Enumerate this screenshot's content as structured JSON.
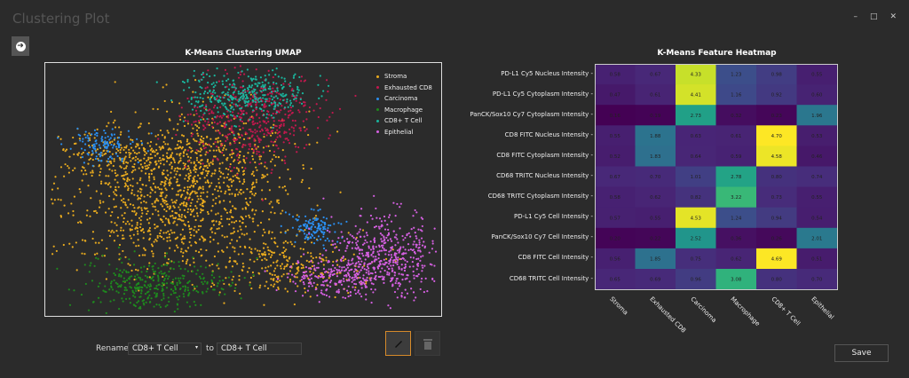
{
  "window": {
    "title": "Clustering Plot",
    "minimize": "–",
    "maximize": "□",
    "close": "✕"
  },
  "umap": {
    "title": "K-Means Clustering UMAP"
  },
  "heatmap": {
    "title": "K-Means Feature Heatmap"
  },
  "controls": {
    "rename_label": "Rename",
    "from_value": "CD8+ T Cell",
    "to_label": "to",
    "to_value": "CD8+ T Cell",
    "save_label": "Save"
  },
  "colors": {
    "Stroma": "#e8aa1e",
    "Exhausted CD8": "#c2184e",
    "Carcinoma": "#2b8ff0",
    "Macrophage": "#1e8a1e",
    "CD8+ T Cell": "#1ab59d",
    "Epithelial": "#d660e2"
  },
  "chart_data": [
    {
      "type": "scatter",
      "title": "K-Means Clustering UMAP",
      "legend": [
        "Stroma",
        "Exhausted CD8",
        "Carcinoma",
        "Macrophage",
        "CD8+ T Cell",
        "Epithelial"
      ],
      "legend_position": "top-right",
      "clusters": [
        {
          "name": "Stroma",
          "components": [
            [
              33,
              55,
              15,
              14,
              1000
            ],
            [
              42,
              35,
              9,
              9,
              300
            ],
            [
              60,
              80,
              10,
              6,
              250
            ],
            [
              20,
              38,
              8,
              6,
              200
            ]
          ]
        },
        {
          "name": "Exhausted CD8",
          "components": [
            [
              52,
              22,
              8,
              9,
              500
            ]
          ]
        },
        {
          "name": "CD8+ T Cell",
          "components": [
            [
              51,
              12,
              8,
              5,
              350
            ]
          ]
        },
        {
          "name": "Carcinoma",
          "components": [
            [
              14,
              33,
              4,
              3,
              120
            ],
            [
              68,
              65,
              3,
              3,
              120
            ]
          ]
        },
        {
          "name": "Macrophage",
          "components": [
            [
              28,
              88,
              9,
              5,
              350
            ]
          ]
        },
        {
          "name": "Epithelial",
          "components": [
            [
              86,
              75,
              7,
              8,
              450
            ],
            [
              76,
              85,
              8,
              4,
              250
            ]
          ]
        }
      ]
    },
    {
      "type": "heatmap",
      "title": "K-Means Feature Heatmap",
      "rows": [
        "PD-L1 Cy5 Nucleus Intensity",
        "PD-L1 Cy5 Cytoplasm Intensity",
        "PanCK/Sox10 Cy7 Cytoplasm Intensity",
        "CD8 FITC Nucleus Intensity",
        "CD8 FITC Cytoplasm Intensity",
        "CD68 TRITC Nucleus Intensity",
        "CD68 TRITC Cytoplasm Intensity",
        "PD-L1 Cy5 Cell Intensity",
        "PanCK/Sox10 Cy7 Cell Intensity",
        "CD8 FITC Cell Intensity",
        "CD68 TRITC Cell Intensity"
      ],
      "columns": [
        "Stroma",
        "Exhausted CD8",
        "Carcinoma",
        "Macrophage",
        "CD8+ T Cell",
        "Epithelial"
      ],
      "values": [
        [
          0.58,
          0.67,
          4.33,
          1.23,
          0.98,
          0.55
        ],
        [
          0.47,
          0.61,
          4.41,
          1.16,
          0.92,
          0.6
        ],
        [
          0.16,
          0.19,
          2.73,
          0.32,
          0.23,
          1.96
        ],
        [
          0.55,
          1.88,
          0.63,
          0.61,
          4.7,
          0.53
        ],
        [
          0.52,
          1.83,
          0.64,
          0.59,
          4.58,
          0.46
        ],
        [
          0.67,
          0.7,
          1.01,
          2.78,
          0.8,
          0.74
        ],
        [
          0.58,
          0.62,
          0.82,
          3.22,
          0.73,
          0.55
        ],
        [
          0.57,
          0.55,
          4.53,
          1.24,
          0.94,
          0.54
        ],
        [
          0.2,
          0.22,
          2.52,
          0.36,
          0.26,
          2.01
        ],
        [
          0.56,
          1.85,
          0.75,
          0.62,
          4.69,
          0.51
        ],
        [
          0.65,
          0.69,
          0.96,
          3.08,
          0.8,
          0.7
        ]
      ],
      "colormap": "viridis",
      "vmin": 0.16,
      "vmax": 4.7
    }
  ]
}
